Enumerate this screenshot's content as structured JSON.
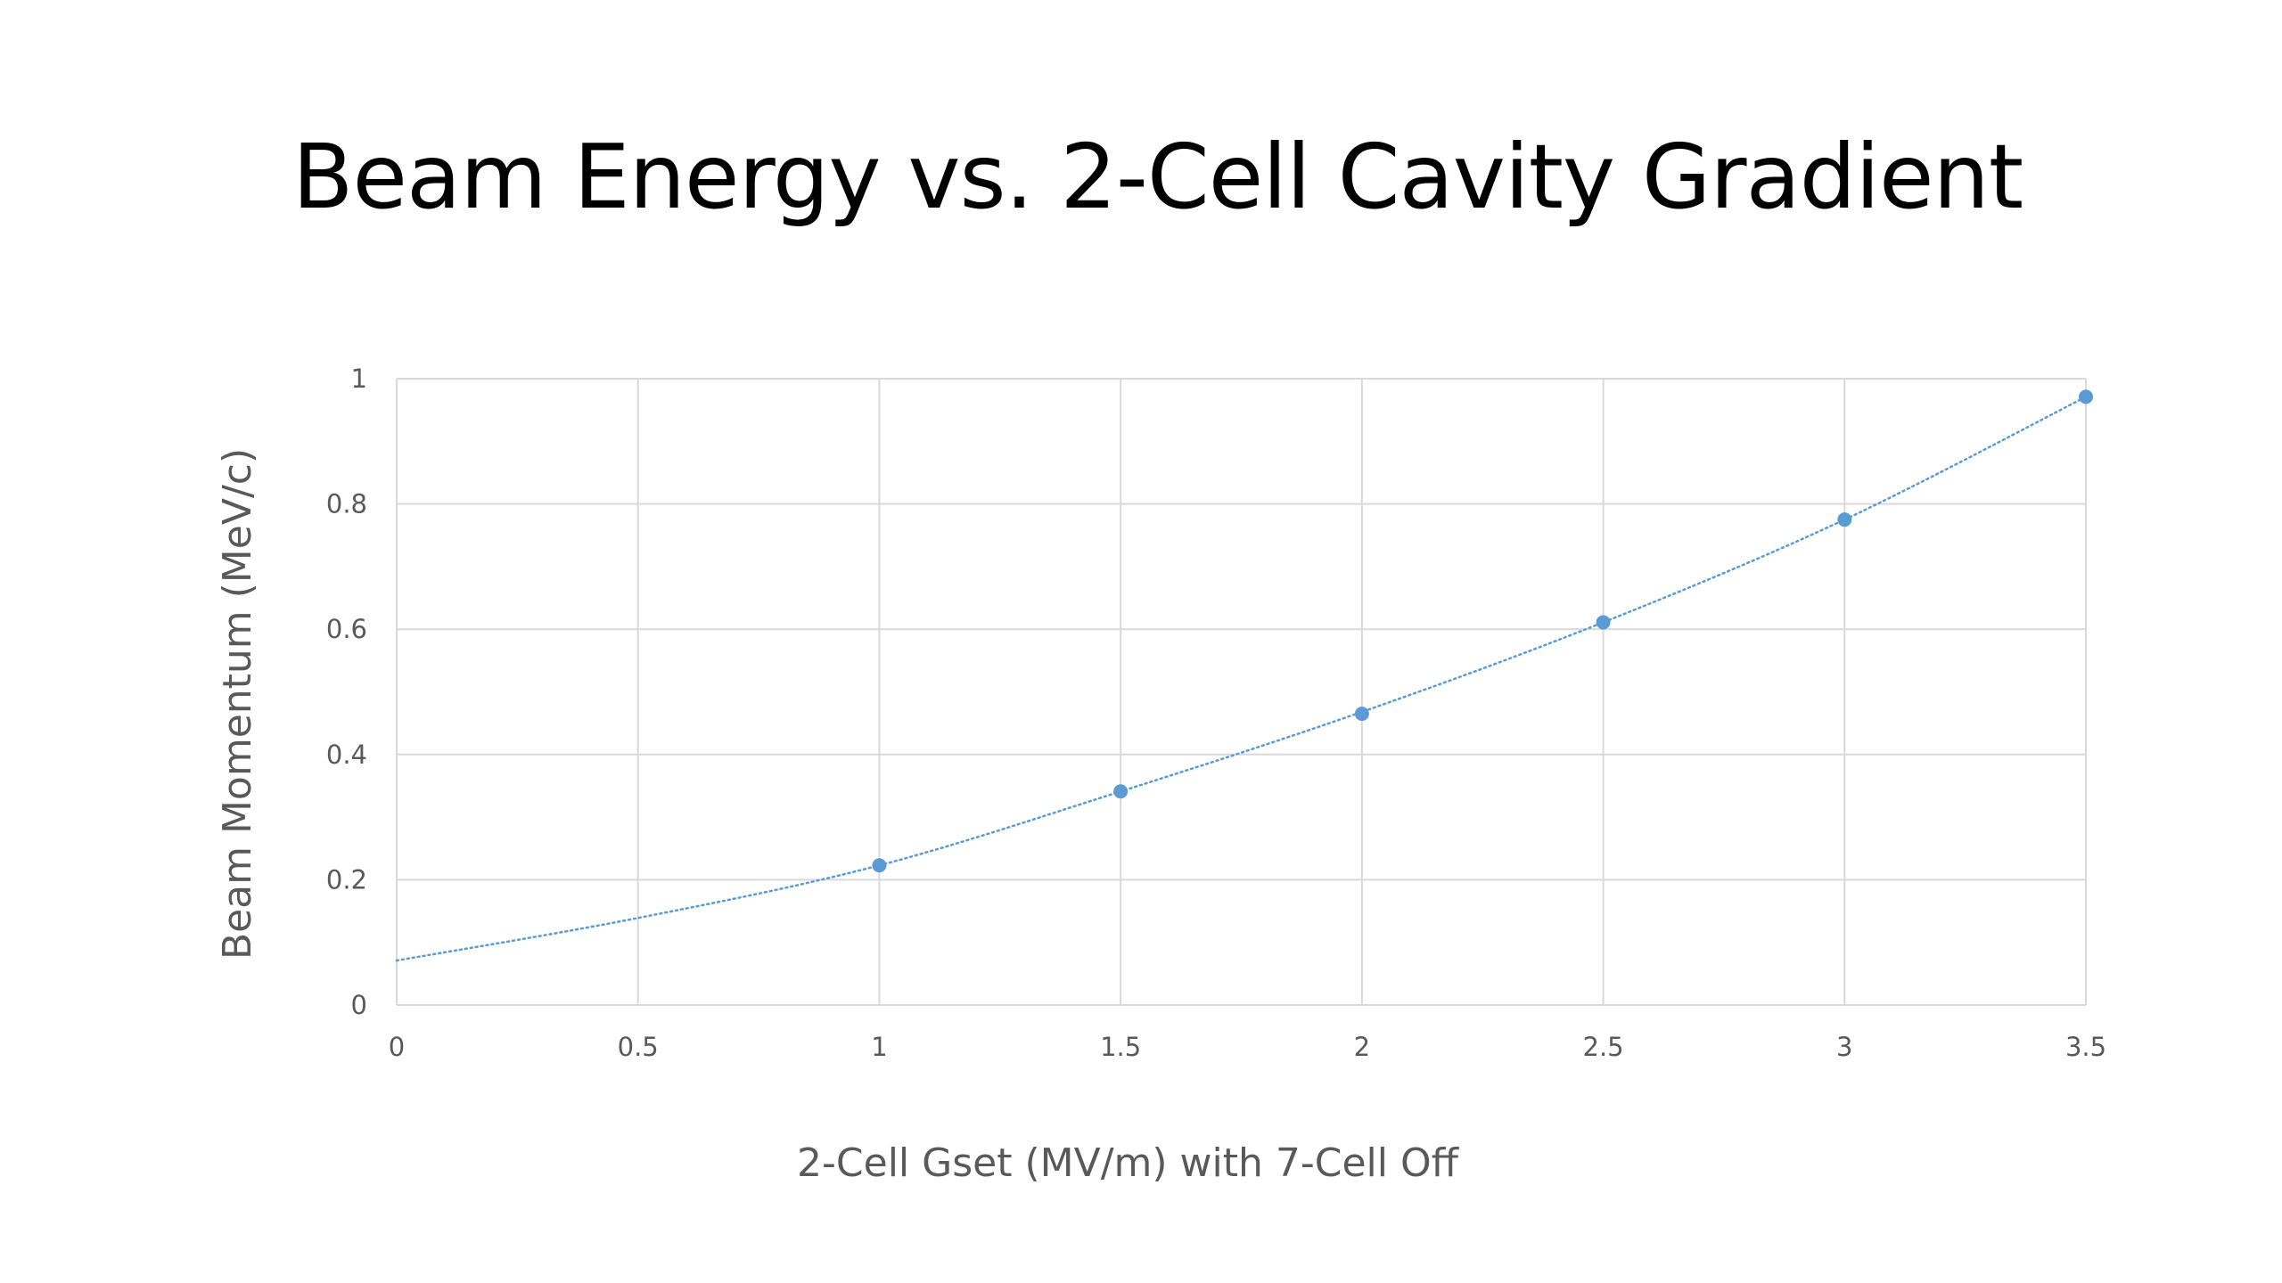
{
  "chart_data": {
    "type": "scatter",
    "title": "Beam Energy vs. 2-Cell Cavity Gradient",
    "xlabel": "2-Cell Gset (MV/m) with 7-Cell Off",
    "ylabel": "Beam Momentum (MeV/c)",
    "xlim": [
      0,
      3.5
    ],
    "ylim": [
      0,
      1
    ],
    "x_ticks": [
      "0",
      "0.5",
      "1",
      "1.5",
      "2",
      "2.5",
      "3",
      "3.5"
    ],
    "y_ticks": [
      "0",
      "0.2",
      "0.4",
      "0.6",
      "0.8",
      "1"
    ],
    "grid": true,
    "legend": "none",
    "series": [
      {
        "x": [
          1,
          1.5,
          2,
          2.5,
          3,
          3.5
        ],
        "y": [
          0.223,
          0.341,
          0.465,
          0.611,
          0.775,
          0.971
        ],
        "color": "#5b9bd5",
        "trendline": {
          "style": "dotted",
          "x": [
            0,
            0.5,
            1,
            1.5,
            2,
            2.5,
            3,
            3.5
          ],
          "y": [
            0.071,
            0.139,
            0.223,
            0.341,
            0.468,
            0.611,
            0.775,
            0.971
          ]
        }
      }
    ],
    "colors": {
      "marker": "#5b9bd5",
      "grid": "#d9d9d9",
      "text": "#595959"
    }
  }
}
